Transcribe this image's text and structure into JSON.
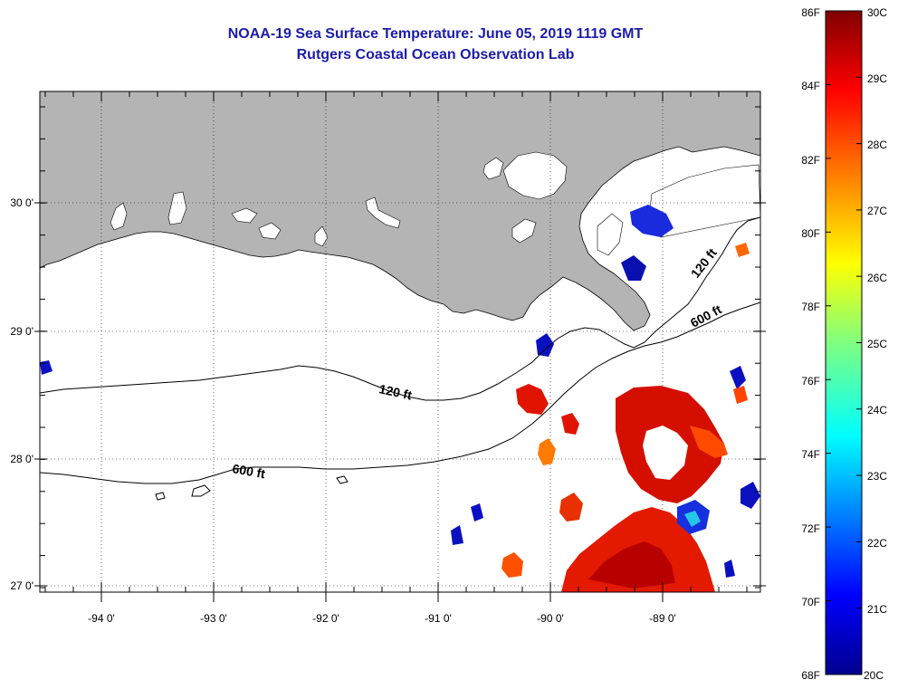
{
  "title": {
    "line1": "NOAA-19 Sea Surface Temperature:  June 05, 2019 1119 GMT",
    "line2": "Rutgers Coastal Ocean Observation Lab"
  },
  "map": {
    "lon_range": [
      -94.55,
      -88.35
    ],
    "lat_range": [
      26.97,
      30.85
    ],
    "lon_ticks": [
      -94,
      -93,
      -92,
      -91,
      -90,
      -89
    ],
    "lon_tick_labels": [
      "-94 0'",
      "-93 0'",
      "-92 0'",
      "-91 0'",
      "-90 0'",
      "-89 0'"
    ],
    "lat_ticks": [
      30,
      29,
      28,
      27
    ],
    "lat_tick_labels": [
      "30 0'",
      "29 0'",
      "28 0'",
      "27 0'"
    ],
    "land_color": "#b4b4b4",
    "contours": [
      {
        "label": "120 ft"
      },
      {
        "label": "600 ft"
      }
    ]
  },
  "colorbar": {
    "f_labels": [
      "86F",
      "84F",
      "82F",
      "80F",
      "78F",
      "76F",
      "74F",
      "72F",
      "70F",
      "68F"
    ],
    "c_labels": [
      "30C",
      "29C",
      "28C",
      "27C",
      "26C",
      "25C",
      "24C",
      "23C",
      "22C",
      "21C",
      "20C"
    ],
    "min_c": 20,
    "max_c": 30
  }
}
